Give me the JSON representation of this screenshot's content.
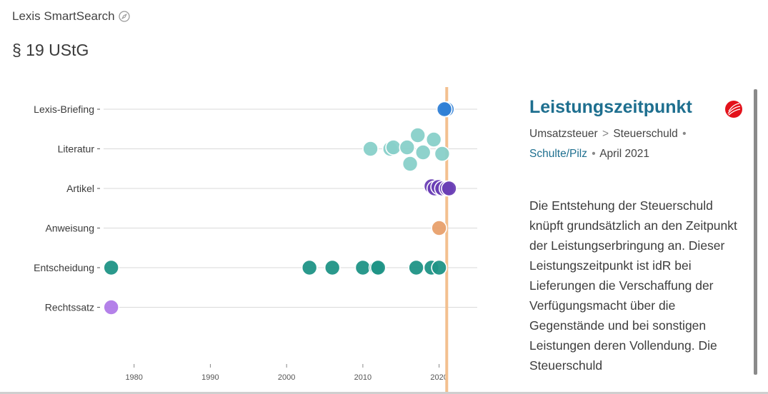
{
  "header": {
    "app_name": "Lexis SmartSearch",
    "icon": "compass-icon",
    "page_title": "§ 19 UStG"
  },
  "timeline": {
    "rows": [
      "Lexis-Briefing",
      "Literatur",
      "Artikel",
      "Anweisung",
      "Entscheidung",
      "Rechtssatz"
    ],
    "colors": {
      "Lexis-Briefing": "#2f7fd6",
      "Literatur": "#88d0c9",
      "Artikel": "#6a3fb5",
      "Anweisung": "#e8a06c",
      "Entscheidung": "#1f9486",
      "Rechtssatz": "#b07ae8"
    },
    "year_ticks": [
      1980,
      1990,
      2000,
      2010,
      2020
    ],
    "current_year_marker": 2021,
    "points": [
      {
        "row": "Lexis-Briefing",
        "year": 2021.0
      },
      {
        "row": "Lexis-Briefing",
        "year": 2020.7
      },
      {
        "row": "Literatur",
        "year": 2011.0
      },
      {
        "row": "Literatur",
        "year": 2013.6
      },
      {
        "row": "Literatur",
        "year": 2014.0
      },
      {
        "row": "Literatur",
        "year": 2015.8
      },
      {
        "row": "Literatur",
        "year": 2017.2
      },
      {
        "row": "Literatur",
        "year": 2017.9
      },
      {
        "row": "Literatur",
        "year": 2016.2
      },
      {
        "row": "Literatur",
        "year": 2019.3
      },
      {
        "row": "Literatur",
        "year": 2020.4
      },
      {
        "row": "Artikel",
        "year": 2019.0
      },
      {
        "row": "Artikel",
        "year": 2019.4
      },
      {
        "row": "Artikel",
        "year": 2019.9
      },
      {
        "row": "Artikel",
        "year": 2020.4
      },
      {
        "row": "Artikel",
        "year": 2021.0
      },
      {
        "row": "Artikel",
        "year": 2021.3
      },
      {
        "row": "Anweisung",
        "year": 2020.0
      },
      {
        "row": "Entscheidung",
        "year": 1977.0
      },
      {
        "row": "Entscheidung",
        "year": 2003.0
      },
      {
        "row": "Entscheidung",
        "year": 2006.0
      },
      {
        "row": "Entscheidung",
        "year": 2010.0
      },
      {
        "row": "Entscheidung",
        "year": 2011.8
      },
      {
        "row": "Entscheidung",
        "year": 2012.0
      },
      {
        "row": "Entscheidung",
        "year": 2017.0
      },
      {
        "row": "Entscheidung",
        "year": 2019.0
      },
      {
        "row": "Entscheidung",
        "year": 2020.0
      },
      {
        "row": "Rechtssatz",
        "year": 1977.0
      }
    ]
  },
  "detail": {
    "title": "Leistungszeitpunkt",
    "category": "Umsatzsteuer",
    "category_separator": ">",
    "subcategory": "Steuerschuld",
    "bullet": "•",
    "author": "Schulte/Pilz",
    "date": "April 2021",
    "text": "Die Entstehung der Steuerschuld knüpft grundsätzlich an den Zeitpunkt der Leistungserbringung an. Dieser Leistungszeitpunkt ist idR bei Lieferungen die Verschaffung der Verfügungsmacht über die Gegenstände und bei sonstigen Leistungen deren Vollendung. Die Steuerschuld",
    "logo": "lexis-logo-icon"
  }
}
